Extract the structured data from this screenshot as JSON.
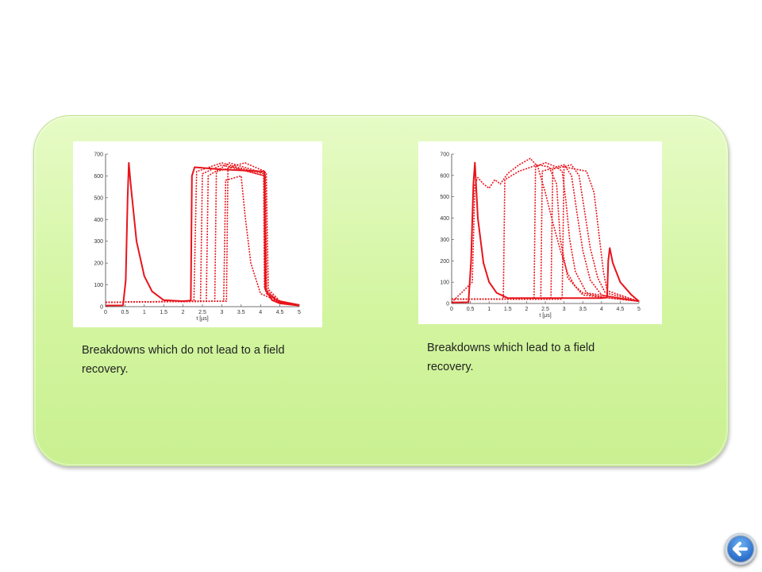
{
  "captions": {
    "left": "Breakdowns which do not lead to a field recovery.",
    "right": "Breakdowns which lead to a field recovery."
  },
  "navigation": {
    "back_icon": "back-arrow-icon"
  },
  "colors": {
    "trace": "#e8141b",
    "panel": "#d6f7a6",
    "button": "#2f73cf"
  },
  "chart_data": [
    {
      "type": "line",
      "xlabel": "t [µs]",
      "ylabel": "",
      "xlim": [
        0,
        5
      ],
      "ylim": [
        0,
        700
      ],
      "xticks": [
        0,
        0.5,
        1,
        1.5,
        2,
        2.5,
        3,
        3.5,
        4,
        4.5,
        5
      ],
      "yticks": [
        0,
        100,
        200,
        300,
        400,
        500,
        600,
        700
      ],
      "series": [
        {
          "x": [
            0,
            0.45,
            0.52,
            0.57,
            0.6,
            0.65,
            0.8,
            1.0,
            1.2,
            1.5,
            2.0,
            2.2,
            2.23,
            2.3,
            3.0,
            4.1,
            4.12,
            4.3,
            4.5,
            5.0
          ],
          "y": [
            5,
            6,
            120,
            500,
            660,
            560,
            300,
            140,
            70,
            30,
            25,
            28,
            600,
            640,
            630,
            620,
            80,
            30,
            15,
            5
          ]
        },
        {
          "x": [
            0,
            2.2,
            2.28,
            2.35,
            3.0,
            3.4,
            4.08,
            4.1,
            4.4,
            5.0
          ],
          "y": [
            20,
            25,
            25,
            620,
            660,
            640,
            610,
            90,
            30,
            8
          ]
        },
        {
          "x": [
            0,
            2.3,
            2.45,
            2.5,
            3.0,
            4.12,
            4.15,
            4.5,
            5.0
          ],
          "y": [
            20,
            25,
            25,
            610,
            650,
            600,
            60,
            20,
            8
          ]
        },
        {
          "x": [
            0,
            2.5,
            2.6,
            2.65,
            3.2,
            4.15,
            4.2,
            4.5,
            5.0
          ],
          "y": [
            20,
            25,
            25,
            600,
            660,
            610,
            80,
            25,
            8
          ]
        },
        {
          "x": [
            0,
            2.7,
            2.82,
            2.86,
            3.3,
            4.1,
            4.14,
            4.5,
            5.0
          ],
          "y": [
            20,
            25,
            25,
            620,
            640,
            600,
            70,
            25,
            8
          ]
        },
        {
          "x": [
            0,
            2.9,
            3.05,
            3.1,
            3.5,
            3.6,
            3.75,
            4.0,
            4.5,
            5.0
          ],
          "y": [
            20,
            25,
            25,
            580,
            600,
            420,
            200,
            60,
            20,
            8
          ]
        },
        {
          "x": [
            0,
            3.05,
            3.12,
            3.16,
            3.6,
            4.12,
            4.16,
            4.5,
            5.0
          ],
          "y": [
            20,
            25,
            25,
            640,
            660,
            620,
            60,
            22,
            8
          ]
        }
      ]
    },
    {
      "type": "line",
      "xlabel": "t [µs]",
      "ylabel": "",
      "xlim": [
        0,
        5
      ],
      "ylim": [
        0,
        700
      ],
      "xticks": [
        0,
        0.5,
        1,
        1.5,
        2,
        2.5,
        3,
        3.5,
        4,
        4.5,
        5
      ],
      "yticks": [
        0,
        100,
        200,
        300,
        400,
        500,
        600,
        700
      ],
      "series": [
        {
          "x": [
            0,
            0.45,
            0.52,
            0.58,
            0.62,
            0.7,
            0.85,
            1.0,
            1.2,
            1.5,
            2.0,
            3.0,
            4.0,
            4.15,
            4.18,
            4.22,
            4.3,
            4.5,
            4.8,
            5.0
          ],
          "y": [
            5,
            6,
            200,
            560,
            660,
            400,
            190,
            100,
            50,
            25,
            25,
            25,
            25,
            28,
            200,
            260,
            190,
            100,
            40,
            10
          ]
        },
        {
          "x": [
            0,
            0.55,
            0.62,
            0.7,
            0.85,
            1.0,
            1.15,
            1.3,
            1.5,
            1.8,
            2.1,
            2.3,
            2.5,
            2.7,
            2.9,
            3.1,
            3.3,
            3.5,
            4.0,
            5.0
          ],
          "y": [
            5,
            100,
            560,
            590,
            560,
            540,
            580,
            560,
            610,
            650,
            680,
            640,
            520,
            380,
            250,
            140,
            80,
            50,
            30,
            10
          ]
        },
        {
          "x": [
            0,
            1.3,
            1.38,
            1.42,
            1.8,
            2.3,
            2.6,
            2.8,
            2.9,
            3.1,
            3.5,
            5.0
          ],
          "y": [
            20,
            20,
            20,
            580,
            620,
            650,
            640,
            560,
            300,
            120,
            40,
            10
          ]
        },
        {
          "x": [
            0,
            2.1,
            2.2,
            2.24,
            2.5,
            2.8,
            2.95,
            3.05,
            3.15,
            3.3,
            3.6,
            5.0
          ],
          "y": [
            20,
            20,
            20,
            640,
            660,
            640,
            620,
            480,
            300,
            150,
            50,
            10
          ]
        },
        {
          "x": [
            0,
            2.28,
            2.38,
            2.42,
            3.0,
            3.2,
            3.35,
            3.5,
            3.7,
            4.0,
            5.0
          ],
          "y": [
            20,
            20,
            20,
            620,
            650,
            600,
            420,
            250,
            110,
            40,
            10
          ]
        },
        {
          "x": [
            0,
            2.55,
            2.65,
            2.7,
            3.2,
            3.4,
            3.55,
            3.7,
            3.9,
            4.1,
            5.0
          ],
          "y": [
            20,
            20,
            20,
            630,
            650,
            600,
            430,
            260,
            120,
            50,
            10
          ]
        },
        {
          "x": [
            0,
            2.85,
            2.95,
            3.0,
            3.6,
            3.8,
            3.95,
            4.05,
            4.15,
            5.0
          ],
          "y": [
            20,
            20,
            20,
            640,
            620,
            520,
            300,
            150,
            60,
            10
          ]
        }
      ]
    }
  ]
}
